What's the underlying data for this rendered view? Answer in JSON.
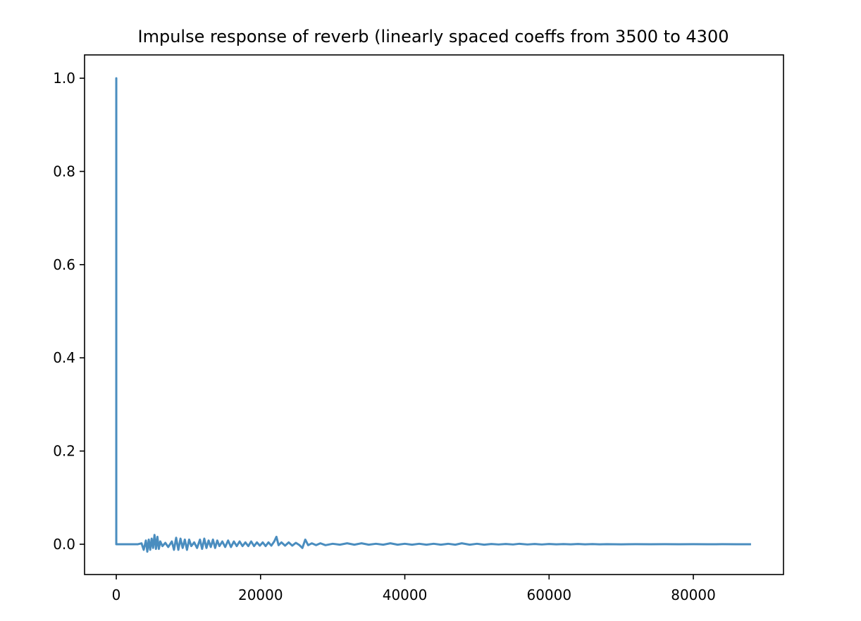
{
  "chart_data": {
    "type": "line",
    "title": "Impulse response of reverb (linearly spaced coeffs from 3500 to 4300",
    "xlabel": "",
    "ylabel": "",
    "xlim": [
      -4400,
      92500
    ],
    "ylim": [
      -0.065,
      1.05
    ],
    "grid": false,
    "legend": "none",
    "xticks": [
      {
        "value": 0,
        "label": "0"
      },
      {
        "value": 20000,
        "label": "20000"
      },
      {
        "value": 40000,
        "label": "40000"
      },
      {
        "value": 60000,
        "label": "60000"
      },
      {
        "value": 80000,
        "label": "80000"
      }
    ],
    "yticks": [
      {
        "value": 0.0,
        "label": "0.0"
      },
      {
        "value": 0.2,
        "label": "0.2"
      },
      {
        "value": 0.4,
        "label": "0.4"
      },
      {
        "value": 0.6,
        "label": "0.6"
      },
      {
        "value": 0.8,
        "label": "0.8"
      },
      {
        "value": 1.0,
        "label": "1.0"
      }
    ],
    "series": [
      {
        "color": "#4a8dbf",
        "x": [
          0,
          0,
          0,
          3000,
          3500,
          3800,
          4100,
          4300,
          4500,
          4700,
          4900,
          5100,
          5300,
          5500,
          5700,
          5900,
          6100,
          6400,
          6800,
          7200,
          7700,
          8000,
          8300,
          8600,
          8900,
          9200,
          9500,
          9800,
          10100,
          10400,
          10800,
          11200,
          11600,
          11900,
          12200,
          12500,
          12800,
          13100,
          13400,
          13700,
          14000,
          14300,
          14700,
          15100,
          15500,
          15900,
          16300,
          16700,
          17100,
          17500,
          17900,
          18300,
          18700,
          19100,
          19500,
          19900,
          20300,
          20700,
          21100,
          21500,
          21900,
          22200,
          22500,
          22900,
          23400,
          23900,
          24400,
          24900,
          25400,
          25800,
          26200,
          26600,
          27100,
          27700,
          28300,
          29000,
          30000,
          31000,
          32000,
          33000,
          34000,
          35000,
          36000,
          37000,
          38000,
          39000,
          40000,
          41000,
          42000,
          43000,
          44000,
          45000,
          46000,
          47000,
          47900,
          49000,
          50000,
          51000,
          52000,
          53000,
          54000,
          55000,
          55900,
          57000,
          58000,
          59000,
          60000,
          61000,
          62000,
          63000,
          64000,
          65000,
          66000,
          67000,
          68000,
          70000,
          72000,
          74000,
          76000,
          78000,
          80000,
          82000,
          84000,
          86000,
          88000
        ],
        "y": [
          0,
          1.0,
          0,
          0,
          0.002,
          -0.012,
          0.008,
          -0.016,
          0.01,
          -0.012,
          0.012,
          -0.008,
          0.02,
          -0.01,
          0.016,
          -0.01,
          0.006,
          -0.004,
          0.003,
          -0.006,
          0.006,
          -0.012,
          0.014,
          -0.012,
          0.012,
          -0.008,
          0.01,
          -0.012,
          0.01,
          -0.004,
          0.004,
          -0.008,
          0.01,
          -0.01,
          0.012,
          -0.008,
          0.008,
          -0.006,
          0.01,
          -0.008,
          0.008,
          -0.004,
          0.006,
          -0.006,
          0.008,
          -0.006,
          0.006,
          -0.004,
          0.006,
          -0.004,
          0.004,
          -0.004,
          0.006,
          -0.004,
          0.004,
          -0.003,
          0.004,
          -0.004,
          0.004,
          -0.003,
          0.006,
          0.016,
          -0.002,
          0.004,
          -0.003,
          0.004,
          -0.003,
          0.003,
          -0.002,
          -0.008,
          0.01,
          -0.002,
          0.002,
          -0.002,
          0.002,
          -0.002,
          0.001,
          -0.001,
          0.002,
          -0.001,
          0.002,
          -0.001,
          0.001,
          -0.001,
          0.002,
          -0.001,
          0.001,
          -0.001,
          0.001,
          -0.001,
          0.001,
          -0.001,
          0.001,
          -0.001,
          0.002,
          -0.001,
          0.001,
          -0.001,
          0.0005,
          -0.0005,
          0.0005,
          -0.0005,
          0.001,
          -0.0005,
          0.0005,
          -0.0005,
          0.0005,
          -0.0003,
          0.0003,
          -0.0003,
          0.0006,
          -0.0003,
          0.0003,
          -0.0002,
          0.0002,
          -0.0002,
          0.0002,
          -0.0001,
          0.0001,
          -0.0001,
          0.0001,
          -0.0001,
          0.0001,
          -0.0001,
          0
        ]
      }
    ]
  }
}
